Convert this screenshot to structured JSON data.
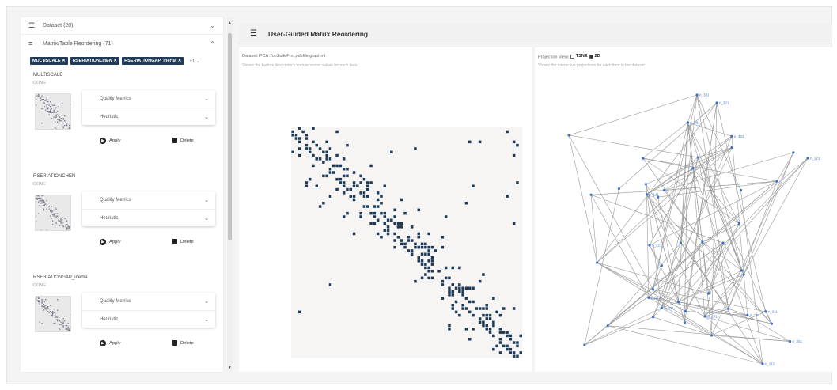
{
  "sidebar": {
    "dataset_header": "Dataset (20)",
    "reorder_header": "Matrix/Table Reordering (71)",
    "chips": [
      "MULTISCALE ✕",
      "RSERIATIONCHEN ✕",
      "RSERIATIONGAP_inertia ✕"
    ],
    "chip_more": "+1",
    "algorithms": [
      {
        "name": "MULTISCALE",
        "status": "DONE",
        "metric_label": "Quality Metrics",
        "heuristic_label": "Heuristic",
        "apply": "Apply",
        "delete": "Delete"
      },
      {
        "name": "RSERIATIONCHEN",
        "status": "DONE",
        "metric_label": "Quality Metrics",
        "heuristic_label": "Heuristic",
        "apply": "Apply",
        "delete": "Delete"
      },
      {
        "name": "RSERIATIONGAP_inertia",
        "status": "DONE",
        "metric_label": "Quality Metrics",
        "heuristic_label": "Heuristic",
        "apply": "Apply",
        "delete": "Delete"
      }
    ]
  },
  "header": {
    "title": "User-Guided Matrix Reordering"
  },
  "matrix_panel": {
    "title": "Dataset: PCA.TooSuiteFrnt.pdbfile.graphml",
    "subtitle": "Shows the feature descriptor's feature vector values for each item",
    "cell_color": "#1d3a56",
    "bg_color": "#f7f4f4"
  },
  "projection_panel": {
    "title_prefix": "Projection View:",
    "opt_tsne": "TSNE",
    "opt_2d": "2D",
    "subtitle": "Shows the interactive projections for each item in the dataset",
    "node_color": "#3a6fd0",
    "labels": [
      "n_331",
      "n_321",
      "n_121",
      "n_311",
      "n_231",
      "n_221",
      "n_211",
      "n_331",
      "n_131",
      "n_111",
      "n_201",
      "n_121",
      "n_331",
      "n_281"
    ]
  }
}
